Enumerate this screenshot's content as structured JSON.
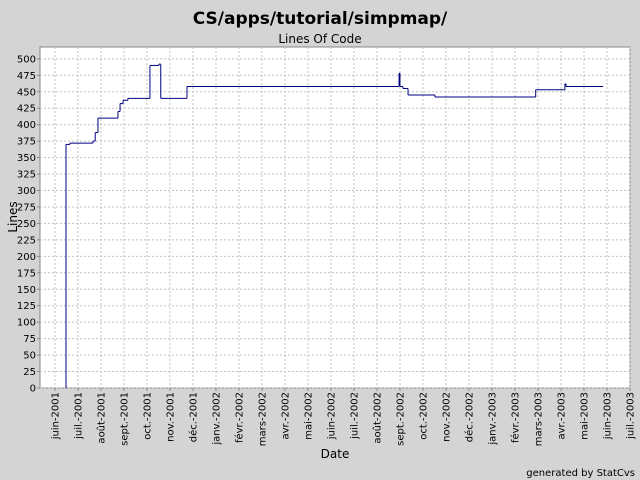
{
  "chart_data": {
    "type": "step-line",
    "title": "CS/apps/tutorial/simpmap/",
    "subtitle": "Lines Of Code",
    "x_label": "Date",
    "y_label": "Lines",
    "footer": "generated by StatCvs",
    "series": [
      {
        "name": "Lines",
        "color": "#000080",
        "x": [
          0.47,
          0.48,
          0.65,
          1.65,
          1.75,
          1.87,
          2.74,
          2.83,
          2.96,
          3.17,
          4.13,
          4.52,
          4.6,
          5.74,
          14.96,
          15.0,
          15.13,
          15.35,
          16.52,
          20.9,
          22.17,
          22.22,
          23.83
        ],
        "values": [
          0,
          370,
          372,
          375,
          388,
          410,
          420,
          432,
          437,
          440,
          490,
          492,
          440,
          458,
          478,
          458,
          455,
          445,
          442,
          453,
          462,
          458,
          458
        ]
      }
    ],
    "xlim": [
      -0.65,
      25.0
    ],
    "xticks": [
      {
        "value": 0,
        "label": "juin-2001"
      },
      {
        "value": 1,
        "label": "juil.-2001"
      },
      {
        "value": 2,
        "label": "août-2001"
      },
      {
        "value": 3,
        "label": "sept.-2001"
      },
      {
        "value": 4,
        "label": "oct.-2001"
      },
      {
        "value": 5,
        "label": "nov.-2001"
      },
      {
        "value": 6,
        "label": "déc.-2001"
      },
      {
        "value": 7,
        "label": "janv.-2002"
      },
      {
        "value": 8,
        "label": "févr.-2002"
      },
      {
        "value": 9,
        "label": "mars-2002"
      },
      {
        "value": 10,
        "label": "avr.-2002"
      },
      {
        "value": 11,
        "label": "mai-2002"
      },
      {
        "value": 12,
        "label": "juin-2002"
      },
      {
        "value": 13,
        "label": "juil.-2002"
      },
      {
        "value": 14,
        "label": "août-2002"
      },
      {
        "value": 15,
        "label": "sept.-2002"
      },
      {
        "value": 16,
        "label": "oct.-2002"
      },
      {
        "value": 17,
        "label": "nov.-2002"
      },
      {
        "value": 18,
        "label": "déc.-2002"
      },
      {
        "value": 19,
        "label": "janv.-2003"
      },
      {
        "value": 20,
        "label": "févr.-2003"
      },
      {
        "value": 21,
        "label": "mars-2003"
      },
      {
        "value": 22,
        "label": "avr.-2003"
      },
      {
        "value": 23,
        "label": "mai-2003"
      },
      {
        "value": 24,
        "label": "juin-2003"
      },
      {
        "value": 25,
        "label": "juil.-2003"
      }
    ],
    "ylim": [
      0,
      518
    ],
    "yticks": [
      0,
      25,
      50,
      75,
      100,
      125,
      150,
      175,
      200,
      225,
      250,
      275,
      300,
      325,
      350,
      375,
      400,
      425,
      450,
      475,
      500
    ],
    "grid": true
  }
}
